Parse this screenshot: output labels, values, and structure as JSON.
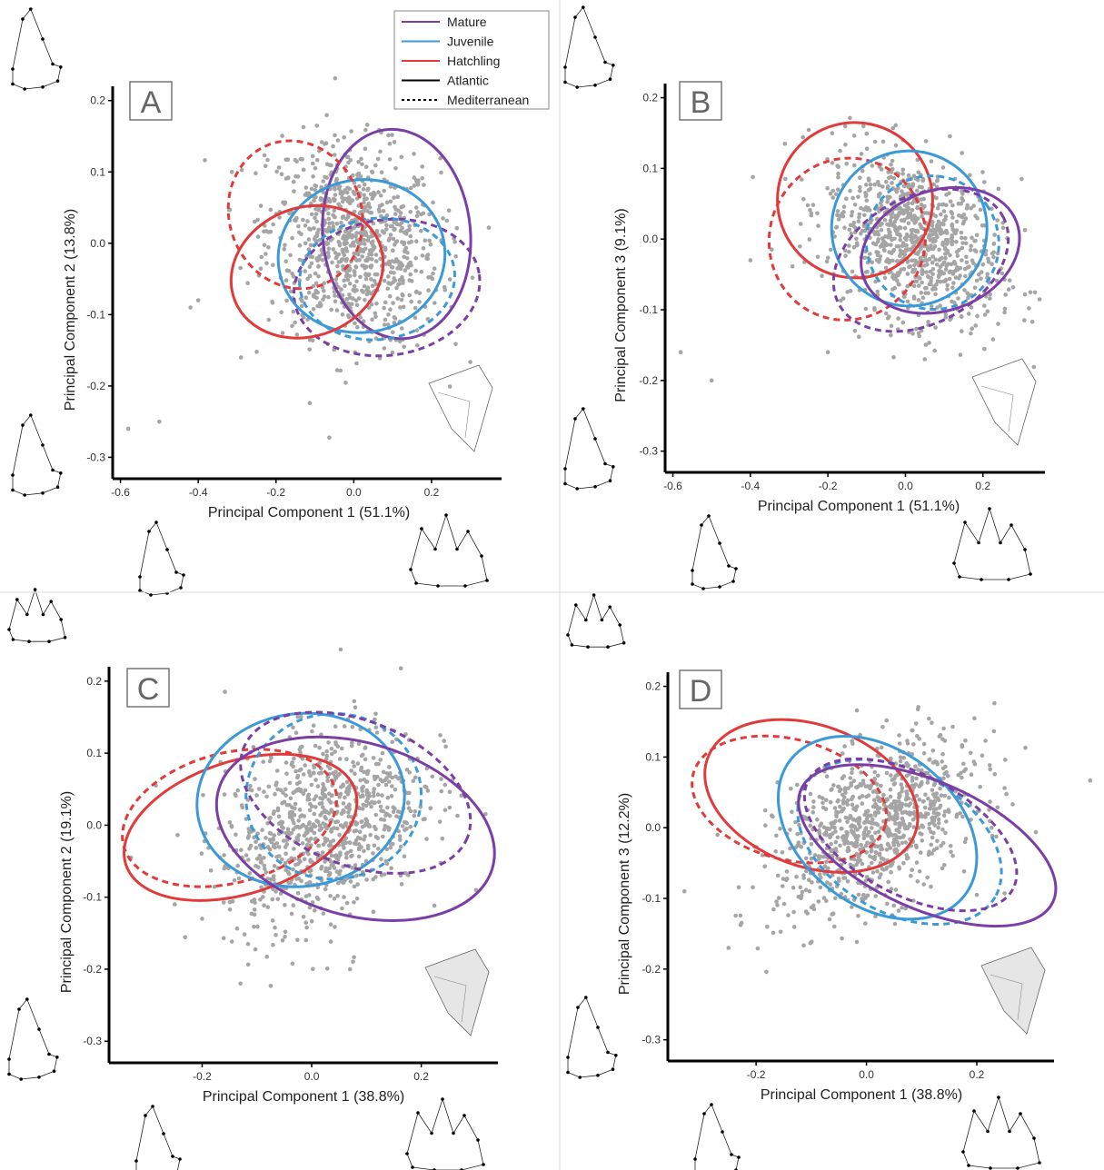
{
  "legend": {
    "items": [
      {
        "label": "Mature",
        "color": "#7B3DA6",
        "dash": false
      },
      {
        "label": "Juvenile",
        "color": "#3A9AD9",
        "dash": false
      },
      {
        "label": "Hatchling",
        "color": "#E23A3A",
        "dash": false
      },
      {
        "label": "Atlantic",
        "color": "#000000",
        "dash": false
      },
      {
        "label": "Mediterranean",
        "color": "#000000",
        "dash": true
      }
    ]
  },
  "colors": {
    "mature": "#7B3DA6",
    "juvenile": "#3A9AD9",
    "hatchling": "#E23A3A",
    "points": "#A5A5A5"
  },
  "chart_data": [
    {
      "type": "scatter",
      "panel": "A",
      "xlabel": "Principal Component 1 (51.1%)",
      "ylabel": "Principal Component 2 (13.8%)",
      "xticks": [
        "-0.6",
        "-0.4",
        "-0.2",
        "0.0",
        "0.2"
      ],
      "yticks": [
        "-0.3",
        "-0.2",
        "-0.1",
        "0.0",
        "0.1",
        "0.2"
      ],
      "xlim": [
        -0.62,
        0.38
      ],
      "ylim": [
        -0.33,
        0.22
      ],
      "cloud": {
        "cx": 0.0,
        "cy": 0.0,
        "sx": 0.11,
        "sy": 0.07,
        "rho": -0.15
      },
      "outliers": [
        [
          -0.58,
          -0.26
        ],
        [
          -0.5,
          -0.25
        ],
        [
          -0.29,
          -0.16
        ],
        [
          -0.42,
          -0.09
        ],
        [
          -0.4,
          -0.08
        ]
      ],
      "ellipses": [
        {
          "group": "Mature",
          "region": "Atlantic",
          "cx": 0.11,
          "cy": 0.013,
          "rx": 0.19,
          "ry": 0.147,
          "angle": -5
        },
        {
          "group": "Mature",
          "region": "Mediterranean",
          "cx": 0.085,
          "cy": -0.062,
          "rx": 0.24,
          "ry": 0.095,
          "angle": -8
        },
        {
          "group": "Juvenile",
          "region": "Atlantic",
          "cx": 0.02,
          "cy": -0.018,
          "rx": 0.215,
          "ry": 0.107,
          "angle": -10
        },
        {
          "group": "Juvenile",
          "region": "Mediterranean",
          "cx": 0.06,
          "cy": -0.05,
          "rx": 0.2,
          "ry": 0.085,
          "angle": -6
        },
        {
          "group": "Hatchling",
          "region": "Atlantic",
          "cx": -0.12,
          "cy": -0.04,
          "rx": 0.2,
          "ry": 0.09,
          "angle": -22
        },
        {
          "group": "Hatchling",
          "region": "Mediterranean",
          "cx": -0.15,
          "cy": 0.04,
          "rx": 0.17,
          "ry": 0.105,
          "angle": -20
        }
      ]
    },
    {
      "type": "scatter",
      "panel": "B",
      "xlabel": "Principal Component 1 (51.1%)",
      "ylabel": "Principal Component 3 (9.1%)",
      "xticks": [
        "-0.6",
        "-0.4",
        "-0.2",
        "0.0",
        "0.2"
      ],
      "yticks": [
        "-0.3",
        "-0.2",
        "-0.1",
        "0.0",
        "0.1",
        "0.2"
      ],
      "xlim": [
        -0.62,
        0.36
      ],
      "ylim": [
        -0.33,
        0.22
      ],
      "cloud": {
        "cx": 0.02,
        "cy": 0.0,
        "sx": 0.11,
        "sy": 0.06,
        "rho": -0.35
      },
      "outliers": [
        [
          -0.58,
          -0.16
        ],
        [
          -0.5,
          -0.2
        ],
        [
          -0.4,
          -0.03
        ],
        [
          -0.2,
          -0.16
        ],
        [
          0.3,
          0.085
        ],
        [
          0.05,
          -0.17
        ]
      ],
      "ellipses": [
        {
          "group": "Hatchling",
          "region": "Atlantic",
          "cx": -0.13,
          "cy": 0.055,
          "rx": 0.2,
          "ry": 0.11,
          "angle": -35
        },
        {
          "group": "Hatchling",
          "region": "Mediterranean",
          "cx": -0.15,
          "cy": 0.0,
          "rx": 0.21,
          "ry": 0.11,
          "angle": -70
        },
        {
          "group": "Juvenile",
          "region": "Atlantic",
          "cx": 0.01,
          "cy": 0.015,
          "rx": 0.2,
          "ry": 0.11,
          "angle": -55
        },
        {
          "group": "Juvenile",
          "region": "Mediterranean",
          "cx": 0.07,
          "cy": -0.005,
          "rx": 0.17,
          "ry": 0.095,
          "angle": -35
        },
        {
          "group": "Mature",
          "region": "Atlantic",
          "cx": 0.09,
          "cy": -0.016,
          "rx": 0.21,
          "ry": 0.085,
          "angle": -20
        },
        {
          "group": "Mature",
          "region": "Mediterranean",
          "cx": 0.04,
          "cy": -0.03,
          "rx": 0.24,
          "ry": 0.09,
          "angle": -28
        }
      ]
    },
    {
      "type": "scatter",
      "panel": "C",
      "xlabel": "Principal Component 1 (38.8%)",
      "ylabel": "Principal Component 2 (19.1%)",
      "xticks": [
        "-0.2",
        "0.0",
        "0.2"
      ],
      "yticks": [
        "-0.3",
        "-0.2",
        "-0.1",
        "0.0",
        "0.1",
        "0.2"
      ],
      "xlim": [
        -0.37,
        0.34
      ],
      "ylim": [
        -0.33,
        0.22
      ],
      "cloud": {
        "cx": 0.02,
        "cy": 0.0,
        "sx": 0.09,
        "sy": 0.07,
        "rho": 0.35
      },
      "outliers": [
        [
          -0.33,
          -0.045
        ],
        [
          -0.25,
          -0.11
        ],
        [
          -0.13,
          -0.22
        ],
        [
          -0.2,
          -0.13
        ],
        [
          0.3,
          -0.09
        ],
        [
          0.07,
          -0.2
        ]
      ],
      "ellipses": [
        {
          "group": "Hatchling",
          "region": "Atlantic",
          "cx": -0.13,
          "cy": -0.003,
          "rx": 0.22,
          "ry": 0.092,
          "angle": -18
        },
        {
          "group": "Hatchling",
          "region": "Mediterranean",
          "cx": -0.15,
          "cy": 0.01,
          "rx": 0.2,
          "ry": 0.09,
          "angle": -15
        },
        {
          "group": "Juvenile",
          "region": "Atlantic",
          "cx": -0.02,
          "cy": 0.035,
          "rx": 0.19,
          "ry": 0.12,
          "angle": -8
        },
        {
          "group": "Juvenile",
          "region": "Mediterranean",
          "cx": 0.04,
          "cy": 0.04,
          "rx": 0.16,
          "ry": 0.115,
          "angle": -5
        },
        {
          "group": "Mature",
          "region": "Atlantic",
          "cx": 0.08,
          "cy": -0.005,
          "rx": 0.26,
          "ry": 0.12,
          "angle": 16
        },
        {
          "group": "Mature",
          "region": "Mediterranean",
          "cx": 0.08,
          "cy": 0.045,
          "rx": 0.22,
          "ry": 0.1,
          "angle": 22
        }
      ]
    },
    {
      "type": "scatter",
      "panel": "D",
      "xlabel": "Principal Component 1 (38.8%)",
      "ylabel": "Principal Component 3 (12.2%)",
      "xticks": [
        "-0.2",
        "0.0",
        "0.2"
      ],
      "yticks": [
        "-0.3",
        "-0.2",
        "-0.1",
        "0.0",
        "0.1",
        "0.2"
      ],
      "xlim": [
        -0.36,
        0.34
      ],
      "ylim": [
        -0.33,
        0.22
      ],
      "cloud": {
        "cx": 0.02,
        "cy": 0.0,
        "sx": 0.09,
        "sy": 0.06,
        "rho": 0.45
      },
      "outliers": [
        [
          -0.33,
          -0.09
        ],
        [
          -0.25,
          -0.17
        ],
        [
          -0.18,
          -0.14
        ],
        [
          0.2,
          -0.095
        ],
        [
          -0.27,
          -0.01
        ]
      ],
      "ellipses": [
        {
          "group": "Hatchling",
          "region": "Atlantic",
          "cx": -0.1,
          "cy": 0.045,
          "rx": 0.2,
          "ry": 0.1,
          "angle": 20
        },
        {
          "group": "Hatchling",
          "region": "Mediterranean",
          "cx": -0.14,
          "cy": 0.04,
          "rx": 0.18,
          "ry": 0.085,
          "angle": 15
        },
        {
          "group": "Juvenile",
          "region": "Atlantic",
          "cx": 0.02,
          "cy": 0.0,
          "rx": 0.2,
          "ry": 0.11,
          "angle": 38
        },
        {
          "group": "Juvenile",
          "region": "Mediterranean",
          "cx": 0.06,
          "cy": -0.02,
          "rx": 0.2,
          "ry": 0.1,
          "angle": 30
        },
        {
          "group": "Mature",
          "region": "Atlantic",
          "cx": 0.11,
          "cy": -0.025,
          "rx": 0.25,
          "ry": 0.09,
          "angle": 24
        },
        {
          "group": "Mature",
          "region": "Mediterranean",
          "cx": 0.08,
          "cy": -0.01,
          "rx": 0.21,
          "ry": 0.085,
          "angle": 28
        }
      ]
    }
  ]
}
